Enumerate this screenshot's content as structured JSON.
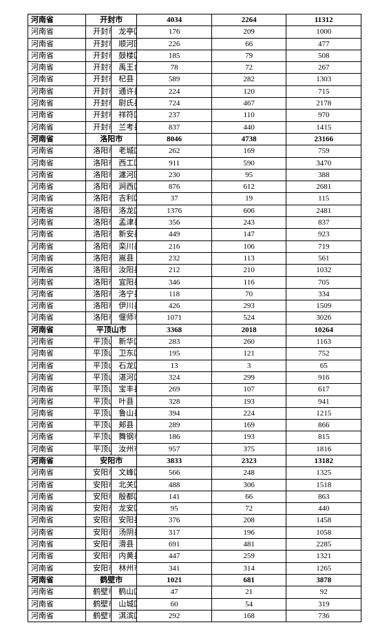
{
  "rows": [
    {
      "type": "city_header",
      "province": "河南省",
      "city": "开封市",
      "v1": 4034,
      "v2": 2264,
      "v3": 11312
    },
    {
      "type": "district",
      "province": "河南省",
      "city": "开封市",
      "district": "龙亭区",
      "v1": 176,
      "v2": 209,
      "v3": 1000
    },
    {
      "type": "district",
      "province": "河南省",
      "city": "开封市",
      "district": "顺河回族区",
      "v1": 226,
      "v2": 66,
      "v3": 477
    },
    {
      "type": "district",
      "province": "河南省",
      "city": "开封市",
      "district": "鼓楼区",
      "v1": 185,
      "v2": 79,
      "v3": 508
    },
    {
      "type": "district",
      "province": "河南省",
      "city": "开封市",
      "district": "禹王台区",
      "v1": 78,
      "v2": 72,
      "v3": 267
    },
    {
      "type": "district",
      "province": "河南省",
      "city": "开封市",
      "district": "杞县",
      "v1": 589,
      "v2": 282,
      "v3": 1303
    },
    {
      "type": "district",
      "province": "河南省",
      "city": "开封市",
      "district": "通许县",
      "v1": 224,
      "v2": 120,
      "v3": 715
    },
    {
      "type": "district",
      "province": "河南省",
      "city": "开封市",
      "district": "尉氏县",
      "v1": 724,
      "v2": 467,
      "v3": 2178
    },
    {
      "type": "district",
      "province": "河南省",
      "city": "开封市",
      "district": "祥符区",
      "v1": 237,
      "v2": 110,
      "v3": 970
    },
    {
      "type": "district",
      "province": "河南省",
      "city": "开封市",
      "district": "兰考县",
      "v1": 837,
      "v2": 440,
      "v3": 1415
    },
    {
      "type": "city_header",
      "province": "河南省",
      "city": "洛阳市",
      "v1": 8046,
      "v2": 4738,
      "v3": 23166
    },
    {
      "type": "district",
      "province": "河南省",
      "city": "洛阳市",
      "district": "老城区",
      "v1": 262,
      "v2": 169,
      "v3": 759
    },
    {
      "type": "district",
      "province": "河南省",
      "city": "洛阳市",
      "district": "西工区",
      "v1": 911,
      "v2": 590,
      "v3": 3470
    },
    {
      "type": "district",
      "province": "河南省",
      "city": "洛阳市",
      "district": "瀍河回族区",
      "v1": 230,
      "v2": 95,
      "v3": 388
    },
    {
      "type": "district",
      "province": "河南省",
      "city": "洛阳市",
      "district": "涧西区",
      "v1": 876,
      "v2": 612,
      "v3": 2681
    },
    {
      "type": "district",
      "province": "河南省",
      "city": "洛阳市",
      "district": "吉利区",
      "v1": 37,
      "v2": 19,
      "v3": 115
    },
    {
      "type": "district",
      "province": "河南省",
      "city": "洛阳市",
      "district": "洛龙区",
      "v1": 1376,
      "v2": 606,
      "v3": 2481
    },
    {
      "type": "district",
      "province": "河南省",
      "city": "洛阳市",
      "district": "孟津县",
      "v1": 356,
      "v2": 243,
      "v3": 837
    },
    {
      "type": "district",
      "province": "河南省",
      "city": "洛阳市",
      "district": "新安县",
      "v1": 449,
      "v2": 147,
      "v3": 923
    },
    {
      "type": "district",
      "province": "河南省",
      "city": "洛阳市",
      "district": "栾川县",
      "v1": 216,
      "v2": 106,
      "v3": 719
    },
    {
      "type": "district",
      "province": "河南省",
      "city": "洛阳市",
      "district": "嵩县",
      "v1": 232,
      "v2": 113,
      "v3": 561
    },
    {
      "type": "district",
      "province": "河南省",
      "city": "洛阳市",
      "district": "汝阳县",
      "v1": 212,
      "v2": 210,
      "v3": 1032
    },
    {
      "type": "district",
      "province": "河南省",
      "city": "洛阳市",
      "district": "宜阳县",
      "v1": 346,
      "v2": 116,
      "v3": 705
    },
    {
      "type": "district",
      "province": "河南省",
      "city": "洛阳市",
      "district": "洛宁县",
      "v1": 118,
      "v2": 70,
      "v3": 334
    },
    {
      "type": "district",
      "province": "河南省",
      "city": "洛阳市",
      "district": "伊川县",
      "v1": 426,
      "v2": 293,
      "v3": 1509
    },
    {
      "type": "district",
      "province": "河南省",
      "city": "洛阳市",
      "district": "偃师市",
      "v1": 1071,
      "v2": 524,
      "v3": 3026
    },
    {
      "type": "city_header",
      "province": "河南省",
      "city": "平顶山市",
      "v1": 3368,
      "v2": 2018,
      "v3": 10264
    },
    {
      "type": "district",
      "province": "河南省",
      "city": "平顶山市",
      "district": "新华区",
      "v1": 283,
      "v2": 260,
      "v3": 1163
    },
    {
      "type": "district",
      "province": "河南省",
      "city": "平顶山市",
      "district": "卫东区",
      "v1": 195,
      "v2": 121,
      "v3": 752
    },
    {
      "type": "district",
      "province": "河南省",
      "city": "平顶山市",
      "district": "石龙区",
      "v1": 13,
      "v2": 3,
      "v3": 65
    },
    {
      "type": "district",
      "province": "河南省",
      "city": "平顶山市",
      "district": "湛河区",
      "v1": 324,
      "v2": 299,
      "v3": 916
    },
    {
      "type": "district",
      "province": "河南省",
      "city": "平顶山市",
      "district": "宝丰县",
      "v1": 269,
      "v2": 107,
      "v3": 617
    },
    {
      "type": "district",
      "province": "河南省",
      "city": "平顶山市",
      "district": "叶县",
      "v1": 328,
      "v2": 193,
      "v3": 941
    },
    {
      "type": "district",
      "province": "河南省",
      "city": "平顶山市",
      "district": "鲁山县",
      "v1": 394,
      "v2": 224,
      "v3": 1215
    },
    {
      "type": "district",
      "province": "河南省",
      "city": "平顶山市",
      "district": "郏县",
      "v1": 289,
      "v2": 169,
      "v3": 866
    },
    {
      "type": "district",
      "province": "河南省",
      "city": "平顶山市",
      "district": "舞钢市",
      "v1": 186,
      "v2": 193,
      "v3": 815
    },
    {
      "type": "district",
      "province": "河南省",
      "city": "平顶山市",
      "district": "汝州市",
      "v1": 957,
      "v2": 375,
      "v3": 1816
    },
    {
      "type": "city_header",
      "province": "河南省",
      "city": "安阳市",
      "v1": 3833,
      "v2": 2323,
      "v3": 13182
    },
    {
      "type": "district",
      "province": "河南省",
      "city": "安阳市",
      "district": "文峰区",
      "v1": 566,
      "v2": 248,
      "v3": 1325
    },
    {
      "type": "district",
      "province": "河南省",
      "city": "安阳市",
      "district": "北关区",
      "v1": 488,
      "v2": 306,
      "v3": 1518
    },
    {
      "type": "district",
      "province": "河南省",
      "city": "安阳市",
      "district": "殷都区",
      "v1": 141,
      "v2": 66,
      "v3": 863
    },
    {
      "type": "district",
      "province": "河南省",
      "city": "安阳市",
      "district": "龙安区",
      "v1": 95,
      "v2": 72,
      "v3": 440
    },
    {
      "type": "district",
      "province": "河南省",
      "city": "安阳市",
      "district": "安阳县",
      "v1": 376,
      "v2": 208,
      "v3": 1458
    },
    {
      "type": "district",
      "province": "河南省",
      "city": "安阳市",
      "district": "汤阴县",
      "v1": 317,
      "v2": 196,
      "v3": 1058
    },
    {
      "type": "district",
      "province": "河南省",
      "city": "安阳市",
      "district": "滑县",
      "v1": 691,
      "v2": 481,
      "v3": 2285
    },
    {
      "type": "district",
      "province": "河南省",
      "city": "安阳市",
      "district": "内黄县",
      "v1": 447,
      "v2": 259,
      "v3": 1321
    },
    {
      "type": "district",
      "province": "河南省",
      "city": "安阳市",
      "district": "林州市",
      "v1": 341,
      "v2": 314,
      "v3": 1265
    },
    {
      "type": "city_header",
      "province": "河南省",
      "city": "鹤壁市",
      "v1": 1021,
      "v2": 681,
      "v3": 3878
    },
    {
      "type": "district",
      "province": "河南省",
      "city": "鹤壁市",
      "district": "鹤山区",
      "v1": 47,
      "v2": 21,
      "v3": 92
    },
    {
      "type": "district",
      "province": "河南省",
      "city": "鹤壁市",
      "district": "山城区",
      "v1": 60,
      "v2": 54,
      "v3": 319
    },
    {
      "type": "district",
      "province": "河南省",
      "city": "鹤壁市",
      "district": "淇滨区",
      "v1": 292,
      "v2": 168,
      "v3": 736
    }
  ]
}
